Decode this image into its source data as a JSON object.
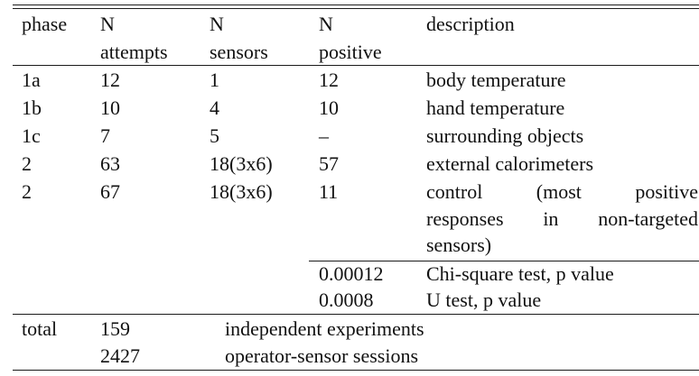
{
  "table": {
    "headers": {
      "phase": "phase",
      "n_attempts_1": "N",
      "n_attempts_2": "attempts",
      "n_sensors_1": "N",
      "n_sensors_2": "sensors",
      "n_positive_1": "N",
      "n_positive_2": "positive",
      "description": "description"
    },
    "rows": [
      {
        "phase": "1a",
        "attempts": "12",
        "sensors": "1",
        "positive": "12",
        "description": "body temperature"
      },
      {
        "phase": "1b",
        "attempts": "10",
        "sensors": "4",
        "positive": "10",
        "description": "hand temperature"
      },
      {
        "phase": "1c",
        "attempts": "7",
        "sensors": "5",
        "positive": "–",
        "description": "surrounding objects"
      },
      {
        "phase": "2",
        "attempts": "63",
        "sensors": "18(3x6)",
        "positive": "57",
        "description": "external calorimeters"
      },
      {
        "phase": "2",
        "attempts": "67",
        "sensors": "18(3x6)",
        "positive": "11",
        "description_lines": [
          "control (most positive",
          "responses in non-targeted",
          "sensors)"
        ]
      }
    ],
    "stats": [
      {
        "value": "0.00012",
        "label": "Chi-square test, p value"
      },
      {
        "value": "0.0008",
        "label": "U test, p value"
      }
    ],
    "totals": {
      "label": "total",
      "items": [
        {
          "value": "159",
          "label": "independent experiments"
        },
        {
          "value": "2427",
          "label": "operator-sensor sessions"
        }
      ]
    }
  }
}
